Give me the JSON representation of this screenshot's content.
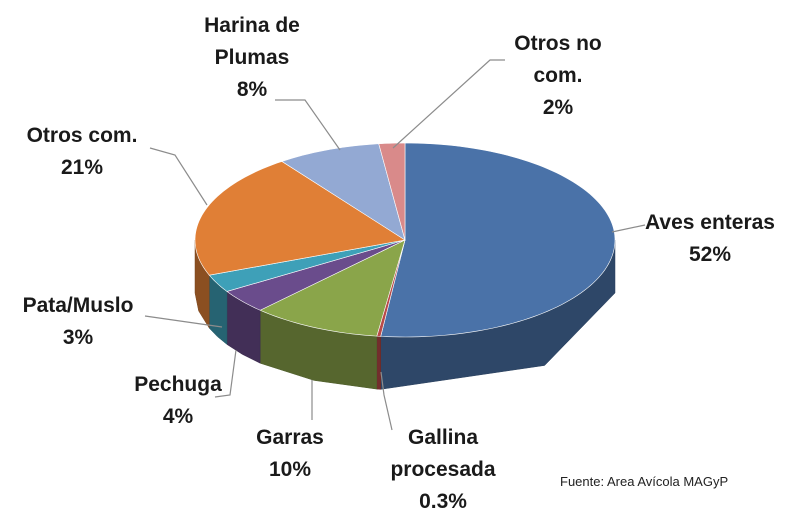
{
  "chart_data": {
    "type": "pie3d",
    "categories": [
      "Aves enteras",
      "Gallina procesada",
      "Garras",
      "Pechuga",
      "Pata/Muslo",
      "Otros com.",
      "Harina de Plumas",
      "Otros no com."
    ],
    "values": [
      52,
      0.3,
      10,
      4,
      3,
      21,
      8,
      2
    ],
    "value_labels": [
      "52%",
      "0.3%",
      "10%",
      "4%",
      "3%",
      "21%",
      "8%",
      "2%"
    ],
    "colors": [
      "#4a72a8",
      "#b94a48",
      "#8aa54a",
      "#6a4c8c",
      "#3ea0b8",
      "#e07f36",
      "#93a9d3",
      "#d98a8a"
    ],
    "source": "Fuente: Area Avícola MAGyP"
  }
}
